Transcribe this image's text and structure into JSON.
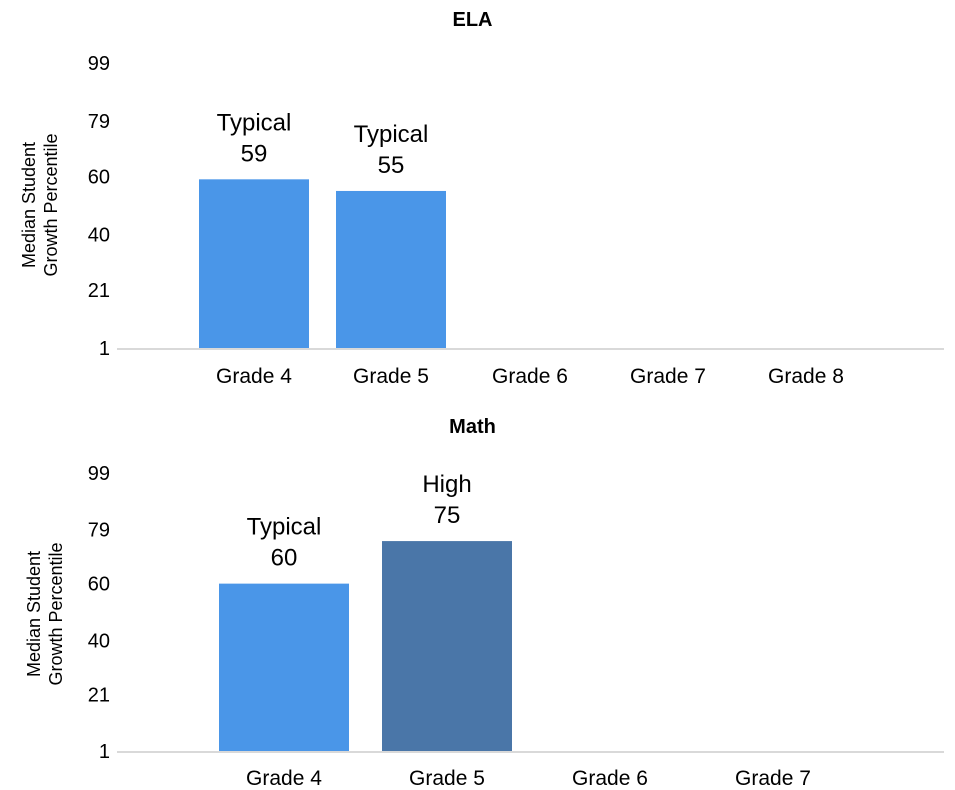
{
  "chart_data": [
    {
      "type": "bar",
      "title": "ELA",
      "ylabel": [
        "Median Student",
        "Growth Percentile"
      ],
      "yticks": [
        1,
        21,
        40,
        60,
        79,
        99
      ],
      "ylim": [
        1,
        99
      ],
      "categories": [
        "Grade 4",
        "Grade 5",
        "Grade 6",
        "Grade 7",
        "Grade 8"
      ],
      "values": [
        59,
        55,
        null,
        null,
        null
      ],
      "labels": [
        "Typical",
        "Typical",
        "",
        "",
        ""
      ],
      "bar_colors": [
        "#4a96e8",
        "#4a96e8",
        null,
        null,
        null
      ],
      "grid": false
    },
    {
      "type": "bar",
      "title": "Math",
      "ylabel": [
        "Median Student",
        "Growth Percentile"
      ],
      "yticks": [
        1,
        21,
        40,
        60,
        79,
        99
      ],
      "ylim": [
        1,
        99
      ],
      "categories": [
        "Grade 4",
        "Grade 5",
        "Grade 6",
        "Grade 7"
      ],
      "values": [
        60,
        75,
        null,
        null
      ],
      "labels": [
        "Typical",
        "High",
        "",
        ""
      ],
      "bar_colors": [
        "#4a96e8",
        "#4a76a8",
        null,
        null
      ],
      "grid": false
    }
  ]
}
